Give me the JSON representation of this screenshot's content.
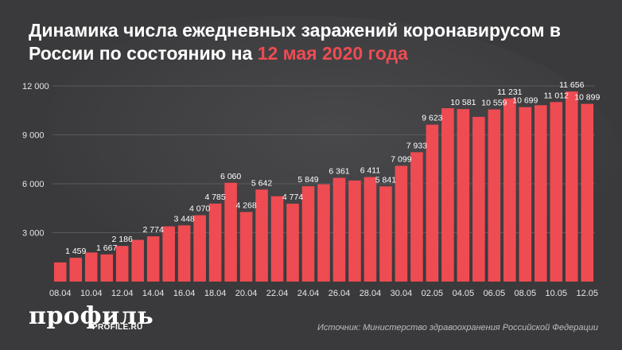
{
  "title": {
    "main": "Динамика числа ежедневных заражений коронавирусом в России по состоянию на ",
    "accent": "12 мая 2020 года"
  },
  "logo": {
    "wordmark": "профиль",
    "site": "PROFILE.RU"
  },
  "source": "Источник: Министерство здравоохранения Российской Федерации",
  "colors": {
    "background": "#3a3a3c",
    "bar": "#ef4b52",
    "accent": "#ef4b52",
    "text": "#ffffff"
  },
  "chart_data": {
    "type": "bar",
    "categories": [
      "08.04",
      "09.04",
      "10.04",
      "11.04",
      "12.04",
      "13.04",
      "14.04",
      "15.04",
      "16.04",
      "17.04",
      "18.04",
      "19.04",
      "20.04",
      "21.04",
      "22.04",
      "23.04",
      "24.04",
      "25.04",
      "26.04",
      "27.04",
      "28.04",
      "29.04",
      "30.04",
      "01.05",
      "02.05",
      "03.05",
      "04.05",
      "05.05",
      "06.05",
      "07.05",
      "08.05",
      "09.05",
      "10.05",
      "11.05",
      "12.05"
    ],
    "x_tick_labels": [
      "08.04",
      "10.04",
      "12.04",
      "14.04",
      "16.04",
      "18.04",
      "20.04",
      "22.04",
      "24.04",
      "26.04",
      "28.04",
      "30.04",
      "02.05",
      "04.05",
      "06.05",
      "08.05",
      "10.05",
      "12.05"
    ],
    "values": [
      1175,
      1459,
      1786,
      1667,
      2186,
      2558,
      2774,
      3388,
      3448,
      4070,
      4785,
      6060,
      4268,
      5642,
      5236,
      4774,
      5849,
      5966,
      6361,
      6198,
      6411,
      5841,
      7099,
      7933,
      9623,
      10633,
      10581,
      10102,
      10559,
      11231,
      10699,
      10817,
      11012,
      11656,
      10899
    ],
    "data_labels": {
      "1": "1 459",
      "3": "1 667",
      "4": "2 186",
      "6": "2 774",
      "8": "3 448",
      "9": "4 070",
      "10": "4 785",
      "11": "6 060",
      "12": "4 268",
      "13": "5 642",
      "15": "4 774",
      "16": "5 849",
      "18": "6 361",
      "20": "6 411",
      "21": "5 841",
      "22": "7 099",
      "23": "7 933",
      "24": "9 623",
      "26": "10 581",
      "28": "10 559",
      "29": "11 231",
      "30": "10 699",
      "32": "11 012",
      "33": "11 656",
      "34": "10 899"
    },
    "y_ticks": [
      3000,
      6000,
      9000,
      12000
    ],
    "y_tick_labels": [
      "3 000",
      "6 000",
      "9 000",
      "12 000"
    ],
    "ylim": [
      0,
      12000
    ],
    "grid": true,
    "legend": "none"
  }
}
